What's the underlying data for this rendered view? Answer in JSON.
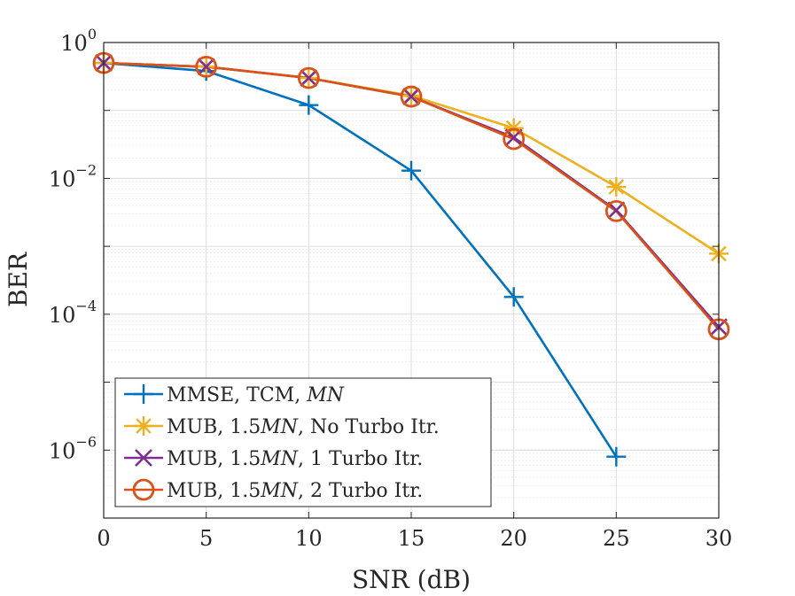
{
  "chart_data": {
    "type": "line",
    "title": "",
    "xlabel": "SNR (dB)",
    "ylabel": "BER",
    "yscale": "log",
    "xlim": [
      0,
      30
    ],
    "ylim": [
      1e-07,
      1
    ],
    "grid": true,
    "minor_grid": true,
    "legend_position": "bottom-left",
    "x_ticks": [
      0,
      5,
      10,
      15,
      20,
      25,
      30
    ],
    "x_tick_labels": [
      "0",
      "5",
      "10",
      "15",
      "20",
      "25",
      "30"
    ],
    "y_ticks": [
      {
        "value": 1,
        "base": "10",
        "exp": "0"
      },
      {
        "value": 0.01,
        "base": "10",
        "exp": "−2"
      },
      {
        "value": 0.0001,
        "base": "10",
        "exp": "−4"
      },
      {
        "value": 1e-06,
        "base": "10",
        "exp": "−6"
      }
    ],
    "series": [
      {
        "name": "MMSE, TCM, MN",
        "legend_parts": [
          "MMSE, TCM, ",
          "MN",
          ""
        ],
        "color": "#0072BD",
        "marker": "plus",
        "x": [
          0,
          5,
          10,
          15,
          20,
          25
        ],
        "values": [
          0.5,
          0.38,
          0.12,
          0.013,
          0.00018,
          8e-07
        ]
      },
      {
        "name": "MUB, 1.5MN, No Turbo Itr.",
        "legend_parts": [
          "MUB, 1.5",
          "MN",
          ", No Turbo Itr."
        ],
        "color": "#EDB120",
        "marker": "star",
        "x": [
          0,
          5,
          10,
          15,
          20,
          25,
          30
        ],
        "values": [
          0.5,
          0.44,
          0.3,
          0.165,
          0.055,
          0.0075,
          0.00078
        ]
      },
      {
        "name": "MUB, 1.5MN, 1 Turbo Itr.",
        "legend_parts": [
          "MUB, 1.5",
          "MN",
          ", 1 Turbo Itr."
        ],
        "color": "#7E2F8E",
        "marker": "x",
        "x": [
          0,
          5,
          10,
          15,
          20,
          25,
          30
        ],
        "values": [
          0.5,
          0.44,
          0.3,
          0.16,
          0.04,
          0.0034,
          6.5e-05
        ]
      },
      {
        "name": "MUB, 1.5MN, 2 Turbo Itr.",
        "legend_parts": [
          "MUB, 1.5",
          "MN",
          ", 2 Turbo Itr."
        ],
        "color": "#D95319",
        "marker": "circle",
        "x": [
          0,
          5,
          10,
          15,
          20,
          25,
          30
        ],
        "values": [
          0.5,
          0.44,
          0.3,
          0.16,
          0.038,
          0.0033,
          6e-05
        ]
      }
    ]
  }
}
